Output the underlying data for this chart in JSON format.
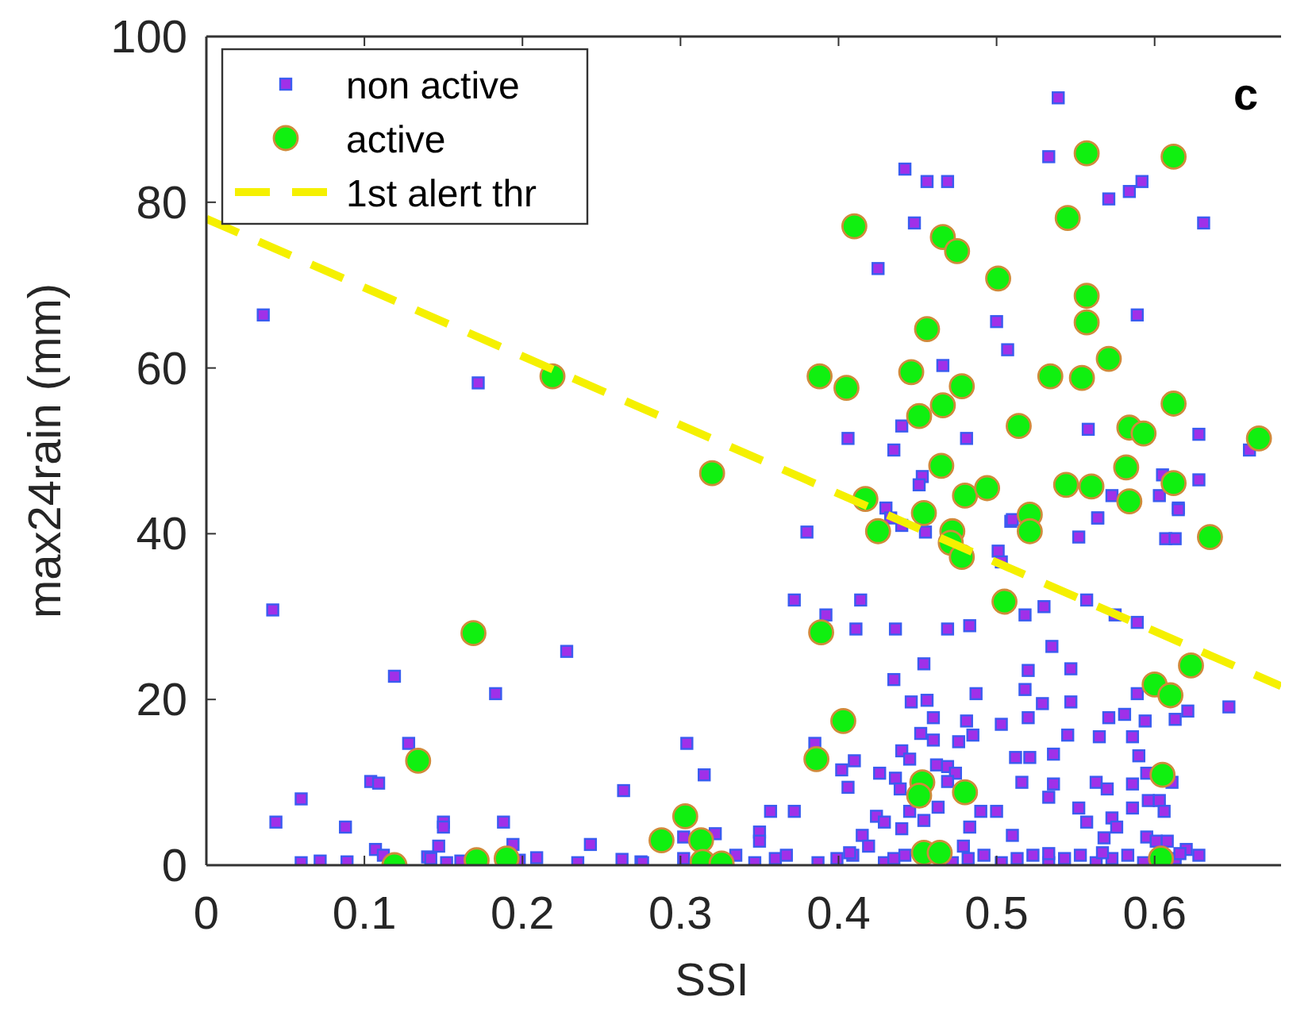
{
  "chart_data": {
    "type": "scatter",
    "xlabel": "SSI",
    "ylabel": "max24rain (mm)",
    "xlim": [
      0,
      0.68
    ],
    "ylim": [
      0,
      100
    ],
    "xticks": [
      0,
      0.1,
      0.2,
      0.3,
      0.4,
      0.5,
      0.6
    ],
    "yticks": [
      0,
      20,
      40,
      60,
      80,
      100
    ],
    "grid": false,
    "legend": "top left",
    "annotations": [
      "c"
    ],
    "series": [
      {
        "name": "non active",
        "type": "scatter",
        "marker": "square",
        "color": "#a030e8",
        "x": [
          0.036,
          0.172,
          0.042,
          0.119,
          0.183,
          0.228,
          0.128,
          0.104,
          0.109,
          0.06,
          0.044,
          0.088,
          0.15,
          0.15,
          0.188,
          0.264,
          0.243,
          0.194,
          0.107,
          0.112,
          0.147,
          0.14,
          0.06,
          0.072,
          0.089,
          0.142,
          0.152,
          0.161,
          0.198,
          0.209,
          0.235,
          0.263,
          0.275,
          0.539,
          0.533,
          0.442,
          0.456,
          0.469,
          0.571,
          0.584,
          0.592,
          0.448,
          0.631,
          0.425,
          0.5,
          0.507,
          0.589,
          0.466,
          0.406,
          0.44,
          0.435,
          0.481,
          0.558,
          0.628,
          0.66,
          0.628,
          0.605,
          0.573,
          0.603,
          0.453,
          0.451,
          0.43,
          0.564,
          0.509,
          0.615,
          0.38,
          0.433,
          0.44,
          0.455,
          0.51,
          0.501,
          0.503,
          0.552,
          0.564,
          0.607,
          0.613,
          0.615,
          0.372,
          0.392,
          0.414,
          0.411,
          0.436,
          0.469,
          0.483,
          0.518,
          0.53,
          0.557,
          0.575,
          0.589,
          0.535,
          0.454,
          0.435,
          0.52,
          0.547,
          0.518,
          0.487,
          0.529,
          0.547,
          0.446,
          0.456,
          0.589,
          0.647,
          0.621,
          0.571,
          0.581,
          0.613,
          0.594,
          0.46,
          0.481,
          0.503,
          0.52,
          0.304,
          0.315,
          0.385,
          0.44,
          0.452,
          0.46,
          0.476,
          0.485,
          0.512,
          0.521,
          0.536,
          0.545,
          0.565,
          0.586,
          0.59,
          0.402,
          0.41,
          0.406,
          0.426,
          0.436,
          0.439,
          0.445,
          0.462,
          0.469,
          0.474,
          0.469,
          0.516,
          0.536,
          0.533,
          0.563,
          0.57,
          0.586,
          0.595,
          0.596,
          0.603,
          0.611,
          0.357,
          0.372,
          0.35,
          0.35,
          0.322,
          0.302,
          0.424,
          0.429,
          0.415,
          0.445,
          0.454,
          0.463,
          0.44,
          0.483,
          0.49,
          0.5,
          0.51,
          0.552,
          0.557,
          0.573,
          0.576,
          0.568,
          0.586,
          0.595,
          0.606,
          0.601,
          0.608,
          0.62,
          0.276,
          0.302,
          0.335,
          0.347,
          0.36,
          0.367,
          0.387,
          0.399,
          0.409,
          0.429,
          0.435,
          0.442,
          0.472,
          0.482,
          0.492,
          0.503,
          0.513,
          0.523,
          0.533,
          0.543,
          0.553,
          0.563,
          0.573,
          0.583,
          0.593,
          0.613,
          0.628,
          0.407,
          0.419,
          0.479,
          0.533,
          0.567,
          0.616
        ],
        "values": [
          66.4,
          58.2,
          30.8,
          22.8,
          20.7,
          25.8,
          14.7,
          10.1,
          9.9,
          8,
          5.2,
          4.6,
          5.2,
          4.6,
          5.2,
          9,
          2.5,
          2.5,
          1.9,
          1.2,
          2.3,
          1,
          0.3,
          0.5,
          0.4,
          0.8,
          0.3,
          0.5,
          0.6,
          0.9,
          0.3,
          0.7,
          0.4,
          92.6,
          85.5,
          84,
          82.5,
          82.5,
          80.4,
          81.3,
          82.5,
          77.5,
          77.5,
          72,
          65.6,
          62.2,
          66.4,
          60.3,
          51.5,
          53,
          50.1,
          51.5,
          52.6,
          52,
          50.1,
          46.5,
          47.1,
          44.6,
          44.6,
          46.9,
          45.9,
          43.1,
          41.9,
          41.5,
          43.1,
          40.2,
          41.9,
          41,
          40.2,
          41.7,
          37.9,
          36.6,
          39.6,
          41.9,
          39.4,
          39.4,
          42.9,
          32,
          30.2,
          32,
          28.5,
          28.5,
          28.5,
          28.9,
          30.2,
          31.2,
          32,
          30.2,
          29.3,
          26.4,
          24.3,
          22.4,
          23.5,
          23.7,
          21.2,
          20.7,
          19.5,
          19.7,
          19.7,
          19.9,
          20.7,
          19.1,
          18.6,
          17.8,
          18.2,
          17.6,
          17.4,
          17.8,
          17.4,
          17,
          17.8,
          14.7,
          10.9,
          14.7,
          13.8,
          15.9,
          15.1,
          14.9,
          15.7,
          13,
          13,
          13.4,
          15.7,
          15.5,
          15.5,
          13.2,
          11.5,
          12.6,
          9.4,
          11.1,
          10.5,
          9.2,
          12.8,
          12.1,
          11.9,
          11.1,
          10.1,
          10,
          9.8,
          8.2,
          10,
          9.2,
          9.8,
          11.1,
          7.8,
          7.8,
          10,
          6.5,
          6.5,
          4,
          2.9,
          3.8,
          3.4,
          5.9,
          5.2,
          3.6,
          6.5,
          5.4,
          7,
          4.4,
          4.6,
          6.5,
          6.5,
          3.6,
          6.9,
          5.2,
          5.7,
          4.6,
          3.3,
          6.9,
          3.4,
          6.5,
          2.9,
          2.9,
          1.9,
          0.3,
          0.8,
          1.2,
          0.3,
          0.8,
          1.2,
          0.3,
          0.8,
          1.2,
          0.3,
          0.8,
          1.2,
          0.3,
          0.8,
          1.2,
          0.3,
          0.8,
          1.2,
          0.3,
          0.8,
          1.2,
          0.3,
          0.8,
          1.2,
          0.3,
          0.8,
          1.2,
          1.5,
          2.3,
          2.3,
          1.4,
          1.5,
          1.4
        ]
      },
      {
        "name": "active",
        "type": "scatter",
        "marker": "circle",
        "color": "#10f010",
        "x": [
          0.219,
          0.169,
          0.134,
          0.119,
          0.171,
          0.19,
          0.288,
          0.557,
          0.612,
          0.545,
          0.41,
          0.466,
          0.475,
          0.501,
          0.557,
          0.557,
          0.456,
          0.571,
          0.388,
          0.405,
          0.446,
          0.478,
          0.466,
          0.451,
          0.534,
          0.554,
          0.612,
          0.514,
          0.584,
          0.593,
          0.666,
          0.32,
          0.465,
          0.582,
          0.612,
          0.417,
          0.48,
          0.494,
          0.544,
          0.56,
          0.584,
          0.454,
          0.521,
          0.425,
          0.472,
          0.471,
          0.478,
          0.521,
          0.635,
          0.505,
          0.389,
          0.623,
          0.6,
          0.61,
          0.403,
          0.386,
          0.605,
          0.453,
          0.451,
          0.48,
          0.303,
          0.313,
          0.314,
          0.326,
          0.454,
          0.464,
          0.604
        ],
        "values": [
          59,
          28,
          12.6,
          0,
          0.6,
          0.8,
          3,
          85.9,
          85.5,
          78.1,
          77.1,
          75.8,
          74.1,
          70.8,
          68.7,
          65.5,
          64.7,
          61.1,
          59,
          57.6,
          59.5,
          57.8,
          55.5,
          54.2,
          59,
          58.8,
          55.7,
          53,
          52.8,
          52.1,
          51.5,
          47.3,
          48.2,
          48,
          46.1,
          44.2,
          44.6,
          45.5,
          45.9,
          45.7,
          43.9,
          42.5,
          42.3,
          40.3,
          40.3,
          38.9,
          37.2,
          40.3,
          39.6,
          31.8,
          28.1,
          24.1,
          21.8,
          20.5,
          17.4,
          12.8,
          10.9,
          10,
          8.4,
          8.8,
          5.9,
          3,
          0.4,
          0.2,
          1.5,
          1.5,
          0.8
        ]
      },
      {
        "name": "1st alert thr",
        "type": "line",
        "marker": "none",
        "line_style": "dashed",
        "color": "#f5f000",
        "x": [
          0,
          0.68
        ],
        "values": [
          78,
          21.6
        ]
      }
    ]
  }
}
